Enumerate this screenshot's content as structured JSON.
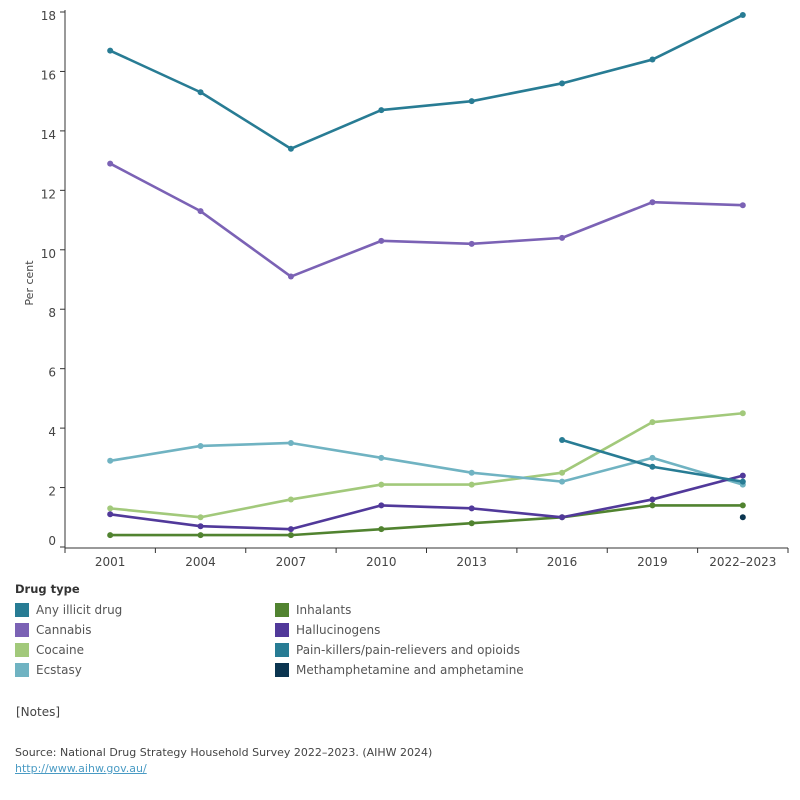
{
  "chart_data": {
    "type": "line",
    "title": "",
    "xlabel": "",
    "ylabel": "Per cent",
    "ylim": [
      0,
      18
    ],
    "yticks": [
      0,
      2,
      4,
      6,
      8,
      10,
      12,
      14,
      16,
      18
    ],
    "categories": [
      "2001",
      "2004",
      "2007",
      "2010",
      "2013",
      "2016",
      "2019",
      "2022–2023"
    ],
    "grid": false,
    "legend_title": "Drug type",
    "legend_placement": "bottom",
    "series": [
      {
        "name": "Any illicit drug",
        "color": "#287c94",
        "values": [
          16.7,
          15.3,
          13.4,
          14.7,
          15.0,
          15.6,
          16.4,
          17.9
        ]
      },
      {
        "name": "Cannabis",
        "color": "#7b62b5",
        "values": [
          12.9,
          11.3,
          9.1,
          10.3,
          10.2,
          10.4,
          11.6,
          11.5
        ]
      },
      {
        "name": "Cocaine",
        "color": "#a2c97b",
        "values": [
          1.3,
          1.0,
          1.6,
          2.1,
          2.1,
          2.5,
          4.2,
          4.5
        ]
      },
      {
        "name": "Ecstasy",
        "color": "#70b3c2",
        "values": [
          2.9,
          3.4,
          3.5,
          3.0,
          2.5,
          2.2,
          3.0,
          2.1
        ]
      },
      {
        "name": "Inhalants",
        "color": "#518330",
        "values": [
          0.4,
          0.4,
          0.4,
          0.6,
          0.8,
          1.0,
          1.4,
          1.4
        ]
      },
      {
        "name": "Hallucinogens",
        "color": "#51399a",
        "values": [
          1.1,
          0.7,
          0.6,
          1.4,
          1.3,
          1.0,
          1.6,
          2.4
        ]
      },
      {
        "name": "Pain-killers/pain-relievers and opioids",
        "color": "#287c94",
        "values": [
          null,
          null,
          null,
          null,
          null,
          3.6,
          2.7,
          2.2
        ]
      },
      {
        "name": "Methamphetamine and amphetamine",
        "color": "#0b3550",
        "values": [
          null,
          null,
          null,
          null,
          null,
          null,
          null,
          1.0
        ]
      }
    ]
  },
  "notes_label": "[Notes]",
  "source_text": "Source:  National Drug Strategy Household Survey 2022–2023. (AIHW 2024)",
  "source_link": "http://www.aihw.gov.au/"
}
